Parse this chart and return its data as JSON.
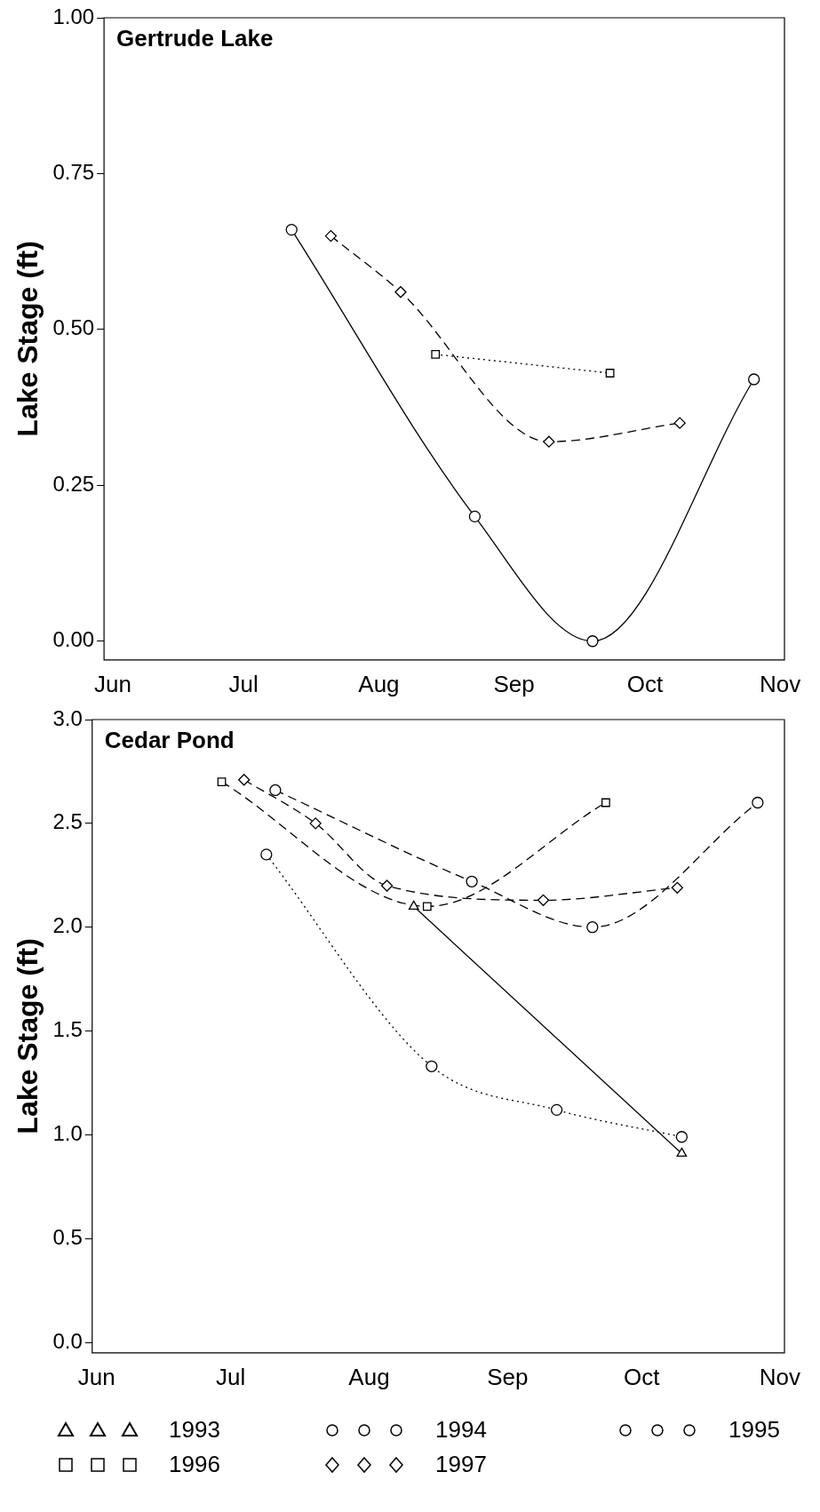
{
  "chart_data": [
    {
      "type": "line",
      "title": "Gertrude Lake",
      "ylabel": "Lake Stage (ft)",
      "xlim": [
        "--05-30",
        "--11-02"
      ],
      "xticks": [
        {
          "value": "--06-01",
          "label": "Jun"
        },
        {
          "value": "--07-01",
          "label": "Jul"
        },
        {
          "value": "--08-01",
          "label": "Aug"
        },
        {
          "value": "--09-01",
          "label": "Sep"
        },
        {
          "value": "--10-01",
          "label": "Oct"
        },
        {
          "value": "--11-01",
          "label": "Nov"
        }
      ],
      "ylim": [
        -0.03,
        1.0
      ],
      "yticks": [
        {
          "value": 0,
          "label": "0.00"
        },
        {
          "value": 0.25,
          "label": "0.25"
        },
        {
          "value": 0.5,
          "label": "0.50"
        },
        {
          "value": 0.75,
          "label": "0.75"
        },
        {
          "value": 1,
          "label": "1.00"
        }
      ],
      "grid": false,
      "legend": false,
      "series": [
        {
          "color": "#000000",
          "marker": "circle",
          "line_style": "solid",
          "x": [
            "--07-12",
            "--08-23",
            "--09-19",
            "--10-26"
          ],
          "values": [
            0.66,
            0.2,
            0.0,
            0.42
          ]
        },
        {
          "color": "#000000",
          "marker": "square",
          "line_style": "dotted",
          "x": [
            "--08-14",
            "--09-23"
          ],
          "values": [
            0.46,
            0.43
          ]
        },
        {
          "color": "#000000",
          "marker": "diamond",
          "line_style": "dashed",
          "x": [
            "--07-21",
            "--08-06",
            "--09-09",
            "--10-09"
          ],
          "values": [
            0.65,
            0.56,
            0.32,
            0.35
          ]
        }
      ]
    },
    {
      "type": "line",
      "title": "Cedar Pond",
      "ylabel": "Lake Stage (ft)",
      "xlim": [
        "--05-31",
        "--11-02"
      ],
      "xticks": [
        {
          "value": "--06-01",
          "label": "Jun"
        },
        {
          "value": "--07-01",
          "label": "Jul"
        },
        {
          "value": "--08-01",
          "label": "Aug"
        },
        {
          "value": "--09-01",
          "label": "Sep"
        },
        {
          "value": "--10-01",
          "label": "Oct"
        },
        {
          "value": "--11-01",
          "label": "Nov"
        }
      ],
      "ylim": [
        -0.05,
        3.0
      ],
      "yticks": [
        {
          "value": 0,
          "label": "0.0"
        },
        {
          "value": 0.5,
          "label": "0.5"
        },
        {
          "value": 1,
          "label": "1.0"
        },
        {
          "value": 1.5,
          "label": "1.5"
        },
        {
          "value": 2,
          "label": "2.0"
        },
        {
          "value": 2.5,
          "label": "2.5"
        },
        {
          "value": 3,
          "label": "3.0"
        }
      ],
      "grid": false,
      "legend": "bottom",
      "series": [
        {
          "name": "1993",
          "color": "#000000",
          "marker": "triangle",
          "line_style": "solid",
          "x": [
            "--08-11",
            "--10-10"
          ],
          "values": [
            2.1,
            0.91
          ]
        },
        {
          "name": "1994",
          "color": "#000000",
          "marker": "circle",
          "line_style": "dotted",
          "x": [
            "--07-09",
            "--08-15",
            "--09-12",
            "--10-10"
          ],
          "values": [
            2.35,
            1.33,
            1.12,
            0.99
          ]
        },
        {
          "name": "1995",
          "color": "#000000",
          "marker": "circle",
          "line_style": "dashed",
          "x": [
            "--07-11",
            "--08-24",
            "--09-20",
            "--10-27"
          ],
          "values": [
            2.66,
            2.22,
            2.0,
            2.6
          ]
        },
        {
          "name": "1996",
          "color": "#000000",
          "marker": "square",
          "line_style": "dashed",
          "x": [
            "--06-29",
            "--08-14",
            "--09-23"
          ],
          "values": [
            2.7,
            2.1,
            2.6
          ]
        },
        {
          "name": "1997",
          "color": "#000000",
          "marker": "diamond",
          "line_style": "dashed",
          "x": [
            "--07-04",
            "--07-20",
            "--08-05",
            "--09-09",
            "--10-09"
          ],
          "values": [
            2.71,
            2.5,
            2.2,
            2.13,
            2.19
          ]
        }
      ]
    }
  ]
}
